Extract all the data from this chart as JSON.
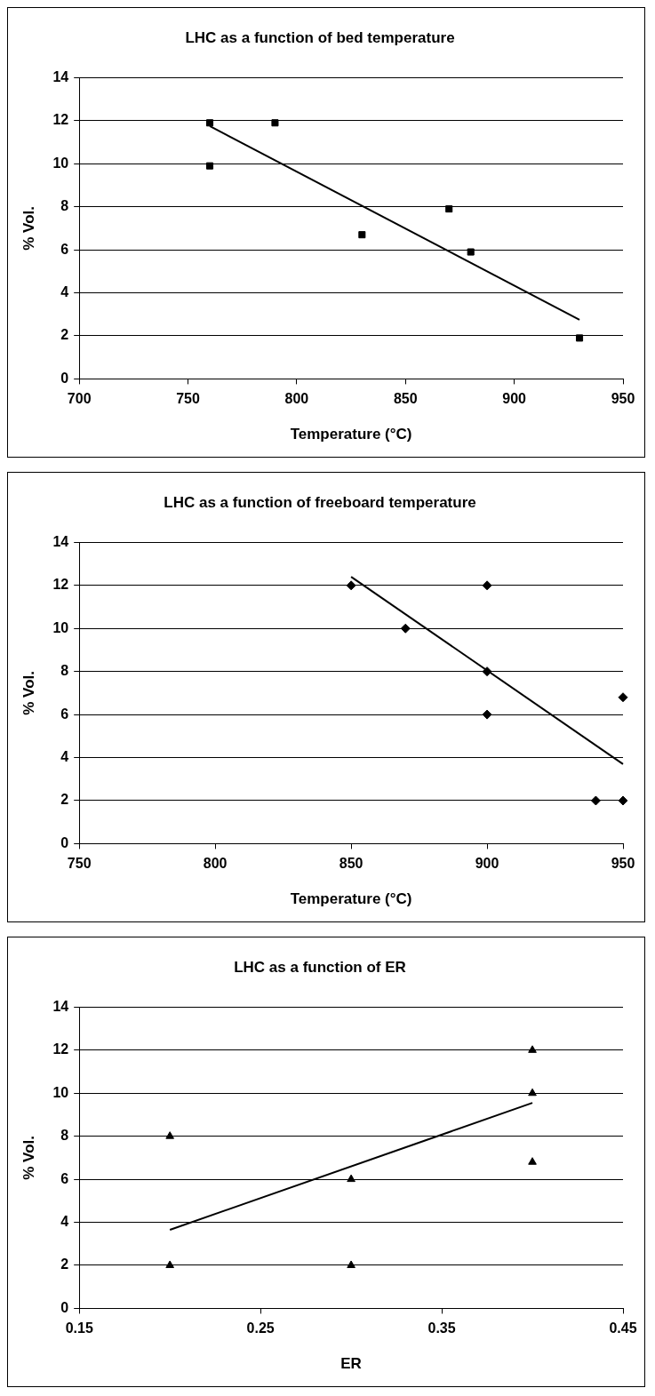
{
  "chart_data": [
    {
      "type": "scatter",
      "title": "LHC as a function of bed temperature",
      "xlabel": "Temperature (°C)",
      "ylabel": "% Vol.",
      "xlim": [
        700,
        950
      ],
      "xticks": [
        700,
        750,
        800,
        850,
        900,
        950
      ],
      "ylim": [
        0,
        14
      ],
      "yticks": [
        0,
        2,
        4,
        6,
        8,
        10,
        12,
        14
      ],
      "grid": "y",
      "series": [
        {
          "type": "scatter",
          "marker": "square",
          "color": "#000000",
          "x": [
            760,
            760,
            790,
            830,
            870,
            880,
            930
          ],
          "values": [
            11.9,
            9.9,
            11.9,
            6.7,
            7.9,
            5.9,
            1.9
          ]
        },
        {
          "type": "line",
          "marker": "none",
          "color": "#000000",
          "x": [
            760,
            930
          ],
          "values": [
            11.75,
            2.75
          ]
        }
      ]
    },
    {
      "type": "scatter",
      "title": "LHC as a function of freeboard temperature",
      "xlabel": "Temperature (°C)",
      "ylabel": "% Vol.",
      "xlim": [
        750,
        950
      ],
      "xticks": [
        750,
        800,
        850,
        900,
        950
      ],
      "ylim": [
        0,
        14
      ],
      "yticks": [
        0,
        2,
        4,
        6,
        8,
        10,
        12,
        14
      ],
      "grid": "y",
      "series": [
        {
          "type": "scatter",
          "marker": "diamond",
          "color": "#000000",
          "x": [
            850,
            870,
            900,
            900,
            900,
            940,
            950,
            950
          ],
          "values": [
            12,
            10,
            12,
            8,
            6,
            2,
            2,
            6.8
          ]
        },
        {
          "type": "line",
          "marker": "none",
          "color": "#000000",
          "x": [
            850,
            950
          ],
          "values": [
            12.4,
            3.7
          ]
        }
      ]
    },
    {
      "type": "scatter",
      "title": "LHC as a function of ER",
      "xlabel": "ER",
      "ylabel": "% Vol.",
      "xlim": [
        0.15,
        0.45
      ],
      "xticks": [
        0.15,
        0.25,
        0.35,
        0.45
      ],
      "ylim": [
        0,
        14
      ],
      "yticks": [
        0,
        2,
        4,
        6,
        8,
        10,
        12,
        14
      ],
      "grid": "y",
      "series": [
        {
          "type": "scatter",
          "marker": "triangle",
          "color": "#000000",
          "x": [
            0.2,
            0.2,
            0.3,
            0.3,
            0.4,
            0.4,
            0.4
          ],
          "values": [
            8,
            2,
            6,
            2,
            12,
            10,
            6.8
          ]
        },
        {
          "type": "line",
          "marker": "none",
          "color": "#000000",
          "x": [
            0.2,
            0.4
          ],
          "values": [
            3.65,
            9.55
          ]
        }
      ]
    }
  ]
}
